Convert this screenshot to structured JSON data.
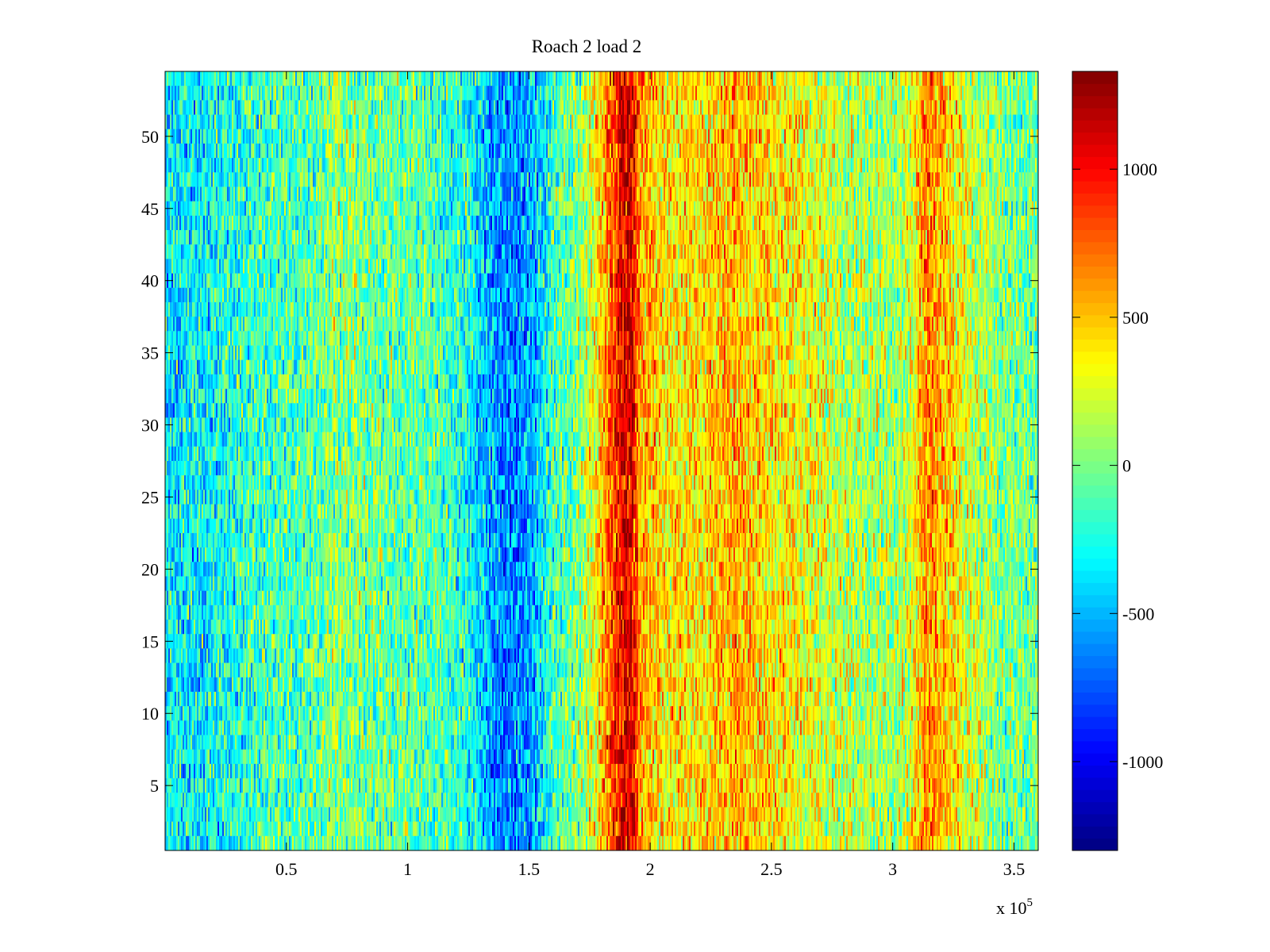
{
  "chart_data": {
    "type": "heatmap",
    "title": "Roach 2 load 2",
    "xlabel": "",
    "ylabel": "",
    "x_multiplier_label": "x 10",
    "x_multiplier_exponent": "5",
    "xlim": [
      0,
      360000
    ],
    "ylim": [
      0.5,
      54.5
    ],
    "clim": [
      -1300,
      1330
    ],
    "n_rows": 54,
    "colormap": "jet",
    "grid": false,
    "x_ticks": [
      {
        "value": 50000,
        "label": "0.5"
      },
      {
        "value": 100000,
        "label": "1"
      },
      {
        "value": 150000,
        "label": "1.5"
      },
      {
        "value": 200000,
        "label": "2"
      },
      {
        "value": 250000,
        "label": "2.5"
      },
      {
        "value": 300000,
        "label": "3"
      },
      {
        "value": 350000,
        "label": "3.5"
      }
    ],
    "y_ticks": [
      {
        "value": 5,
        "label": "5"
      },
      {
        "value": 10,
        "label": "10"
      },
      {
        "value": 15,
        "label": "15"
      },
      {
        "value": 20,
        "label": "20"
      },
      {
        "value": 25,
        "label": "25"
      },
      {
        "value": 30,
        "label": "30"
      },
      {
        "value": 35,
        "label": "35"
      },
      {
        "value": 40,
        "label": "40"
      },
      {
        "value": 45,
        "label": "45"
      },
      {
        "value": 50,
        "label": "50"
      }
    ],
    "colorbar_ticks": [
      {
        "value": 1000,
        "label": "1000"
      },
      {
        "value": 500,
        "label": "500"
      },
      {
        "value": 0,
        "label": "0"
      },
      {
        "value": -500,
        "label": "-500"
      },
      {
        "value": -1000,
        "label": "-1000"
      }
    ],
    "column_profile": [
      {
        "x": 0,
        "value": -350
      },
      {
        "x": 20000,
        "value": -300
      },
      {
        "x": 40000,
        "value": -150
      },
      {
        "x": 60000,
        "value": -100
      },
      {
        "x": 70000,
        "value": 50
      },
      {
        "x": 90000,
        "value": -50
      },
      {
        "x": 110000,
        "value": -100
      },
      {
        "x": 125000,
        "value": -250
      },
      {
        "x": 135000,
        "value": -550
      },
      {
        "x": 145000,
        "value": -650
      },
      {
        "x": 152000,
        "value": -500
      },
      {
        "x": 160000,
        "value": -150
      },
      {
        "x": 172000,
        "value": 50
      },
      {
        "x": 180000,
        "value": 500
      },
      {
        "x": 188000,
        "value": 1050
      },
      {
        "x": 192000,
        "value": 1100
      },
      {
        "x": 196000,
        "value": 600
      },
      {
        "x": 205000,
        "value": 400
      },
      {
        "x": 220000,
        "value": 400
      },
      {
        "x": 235000,
        "value": 550
      },
      {
        "x": 245000,
        "value": 450
      },
      {
        "x": 260000,
        "value": 350
      },
      {
        "x": 280000,
        "value": 150
      },
      {
        "x": 300000,
        "value": 100
      },
      {
        "x": 307000,
        "value": 200
      },
      {
        "x": 313000,
        "value": 650
      },
      {
        "x": 320000,
        "value": 550
      },
      {
        "x": 330000,
        "value": 250
      },
      {
        "x": 345000,
        "value": 0
      },
      {
        "x": 360000,
        "value": -50
      }
    ],
    "noise_amplitude": 320
  }
}
